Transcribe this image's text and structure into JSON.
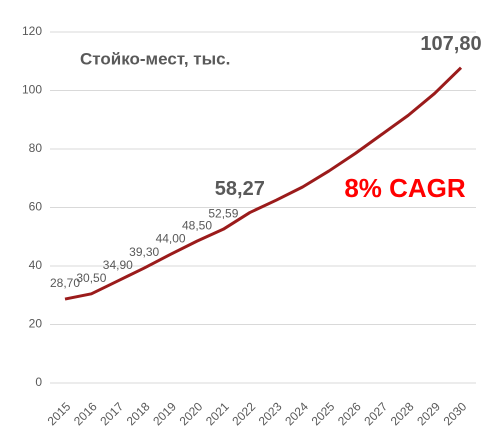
{
  "chart_data": {
    "type": "line",
    "title": "Стойко-мест, тыс.",
    "annotation": "8% CAGR",
    "categories": [
      "2015",
      "2016",
      "2017",
      "2018",
      "2019",
      "2020",
      "2021",
      "2022",
      "2023",
      "2024",
      "2025",
      "2026",
      "2027",
      "2028",
      "2029",
      "2030"
    ],
    "series": [
      {
        "name": "Стойко-мест, тыс.",
        "color": "#9b1b1b",
        "values": [
          28.7,
          30.5,
          34.9,
          39.3,
          44.0,
          48.5,
          52.59,
          58.27,
          62.5,
          67,
          72.5,
          78.5,
          85,
          91.5,
          99,
          107.8
        ],
        "value_labels": [
          "28,70",
          "30,50",
          "34,90",
          "39,30",
          "44,00",
          "48,50",
          "52,59",
          "58,27",
          null,
          null,
          null,
          null,
          null,
          null,
          null,
          "107,80"
        ]
      }
    ],
    "ylim": [
      0,
      120
    ],
    "yticks": [
      0,
      20,
      40,
      60,
      80,
      100,
      120
    ],
    "grid": true
  }
}
